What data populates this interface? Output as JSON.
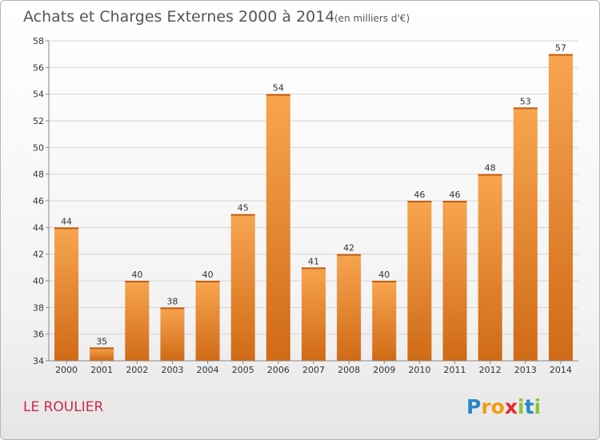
{
  "chart_data": {
    "type": "bar",
    "title": "Achats et Charges Externes 2000 à 2014",
    "subtitle": "(en milliers d'€)",
    "categories": [
      "2000",
      "2001",
      "2002",
      "2003",
      "2004",
      "2005",
      "2006",
      "2007",
      "2008",
      "2009",
      "2010",
      "2011",
      "2012",
      "2013",
      "2014"
    ],
    "values": [
      44,
      35,
      40,
      38,
      40,
      45,
      54,
      41,
      42,
      40,
      46,
      46,
      48,
      53,
      57
    ],
    "yticks": [
      34,
      36,
      38,
      40,
      42,
      44,
      46,
      48,
      50,
      52,
      54,
      56,
      58
    ],
    "ylim": [
      34,
      58
    ],
    "grid": true,
    "bar_color": "#f28c2a",
    "bar_color_dark": "#d8701a"
  },
  "commune": "LE ROULIER",
  "logo": {
    "letters": [
      "P",
      "r",
      "o",
      "x",
      "i",
      "t",
      "i"
    ],
    "colors": [
      "#2a86c8",
      "#f39c12",
      "#f39c12",
      "#e8262e",
      "#8cc63f",
      "#2a86c8",
      "#8cc63f"
    ]
  }
}
